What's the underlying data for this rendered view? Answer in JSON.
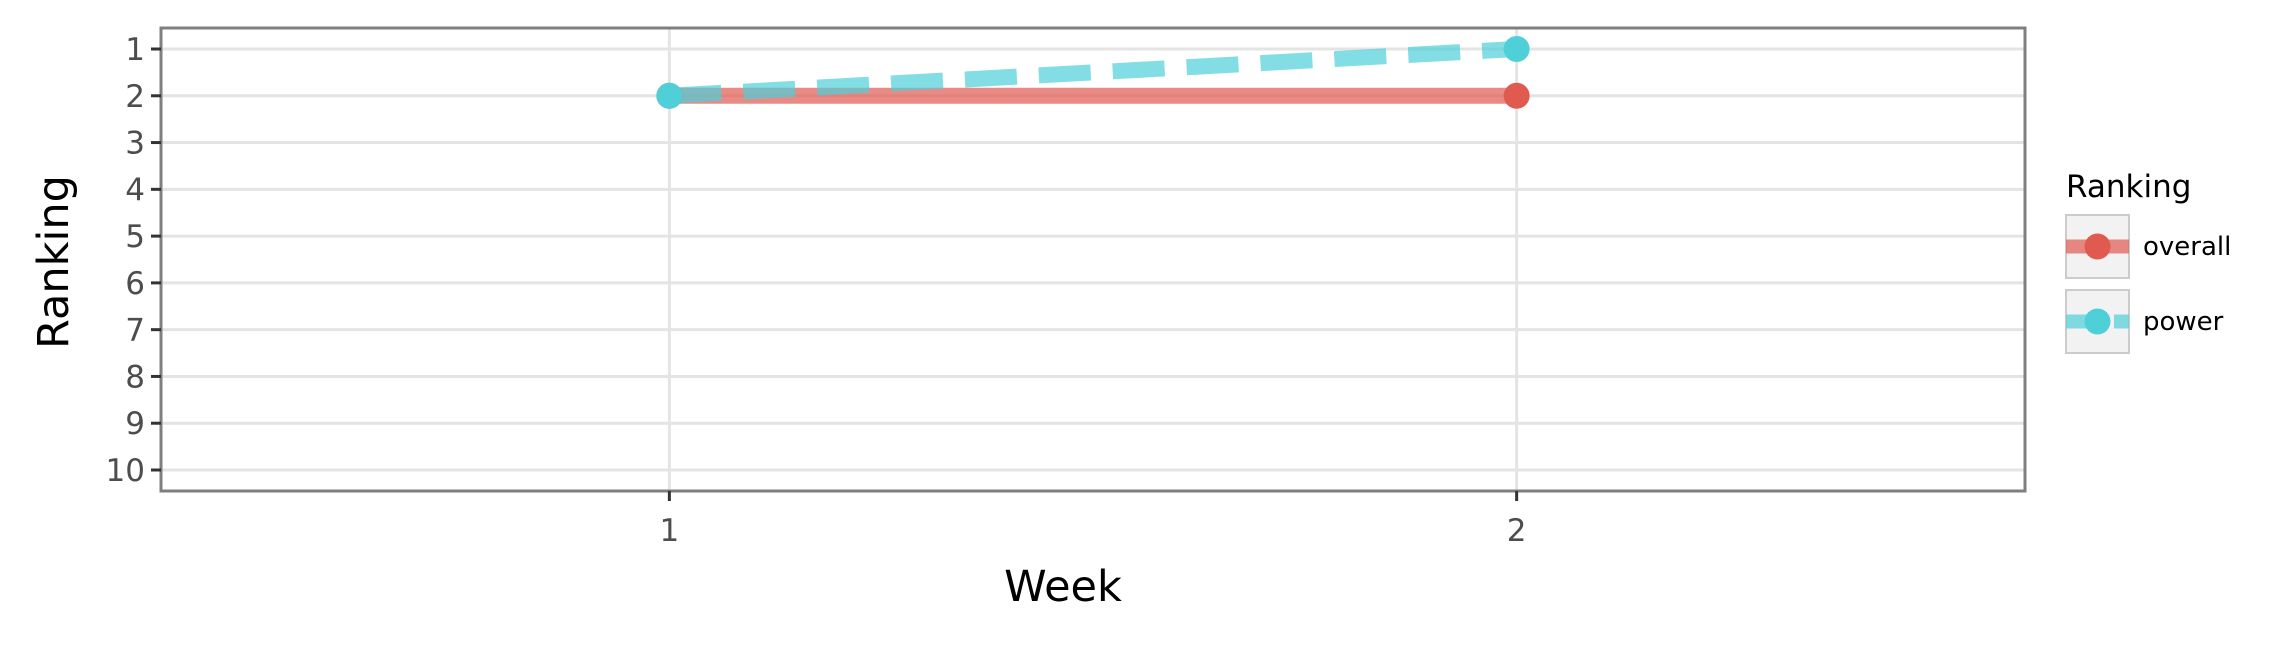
{
  "chart_data": {
    "type": "line",
    "xlabel": "Week",
    "ylabel": "Ranking",
    "x_ticks": [
      "1",
      "2"
    ],
    "xlim": [
      0.4,
      2.6
    ],
    "y_ticks": [
      "1",
      "2",
      "3",
      "4",
      "5",
      "6",
      "7",
      "8",
      "9",
      "10"
    ],
    "ylim": [
      1,
      10
    ],
    "y_reversed": true,
    "grid": true,
    "legend": {
      "title": "Ranking",
      "position": "right"
    },
    "series": [
      {
        "name": "overall",
        "color": "#E05A50",
        "line_style": "solid",
        "points": [
          {
            "x": 1,
            "y": 2
          },
          {
            "x": 2,
            "y": 2
          }
        ]
      },
      {
        "name": "power",
        "color": "#4FCFD8",
        "line_style": "dashed",
        "points": [
          {
            "x": 1,
            "y": 2
          },
          {
            "x": 2,
            "y": 1
          }
        ]
      }
    ]
  }
}
